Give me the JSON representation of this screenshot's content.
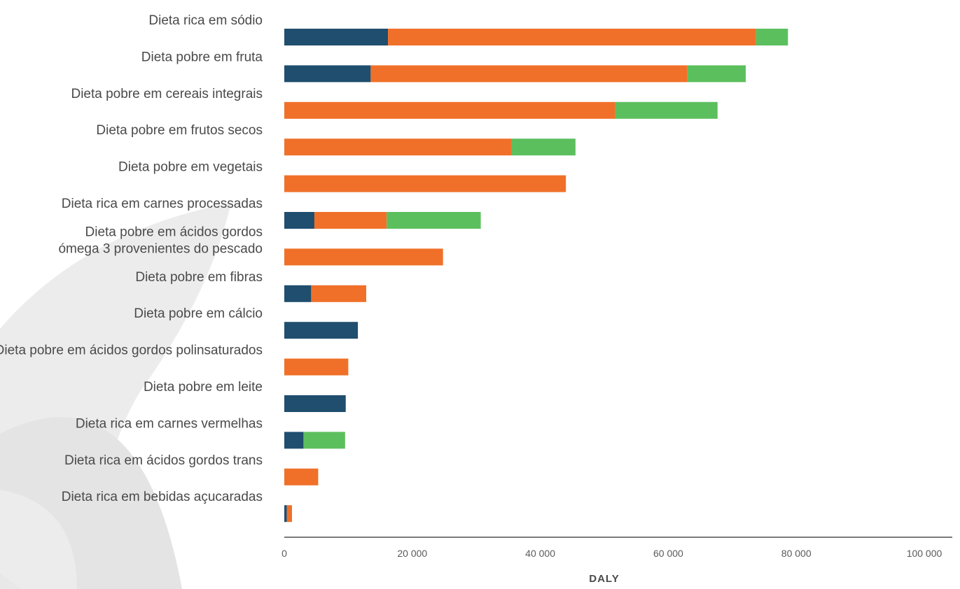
{
  "chart_data": {
    "type": "bar",
    "orientation": "horizontal",
    "stacked": true,
    "xlabel": "DALY",
    "xlim": [
      0,
      100000
    ],
    "xticks": [
      0,
      20000,
      40000,
      60000,
      80000,
      100000
    ],
    "xtick_labels": [
      "0",
      "20 000",
      "40 000",
      "60 000",
      "80 000",
      "100 000"
    ],
    "grid": false,
    "categories": [
      [
        "Dieta rica em sódio"
      ],
      [
        "Dieta pobre em fruta"
      ],
      [
        "Dieta pobre em cereais integrais"
      ],
      [
        "Dieta pobre em frutos secos"
      ],
      [
        "Dieta pobre em vegetais"
      ],
      [
        "Dieta rica em carnes processadas"
      ],
      [
        "Dieta pobre em ácidos gordos",
        "ómega 3 provenientes do pescado"
      ],
      [
        "Dieta pobre em fibras"
      ],
      [
        "Dieta pobre em cálcio"
      ],
      [
        "Dieta pobre em ácidos gordos polinsaturados"
      ],
      [
        "Dieta pobre em leite"
      ],
      [
        "Dieta rica em carnes vermelhas"
      ],
      [
        "Dieta rica em ácidos gordos trans"
      ],
      [
        "Dieta rica em bebidas açucaradas"
      ]
    ],
    "series": [
      {
        "color": "#1f4e6e",
        "values": [
          16200,
          13500,
          0,
          0,
          0,
          4700,
          0,
          4200,
          11500,
          0,
          9600,
          3000,
          0,
          400
        ]
      },
      {
        "color": "#f07029",
        "values": [
          57500,
          49500,
          51700,
          35500,
          44000,
          11300,
          24800,
          8600,
          0,
          10000,
          0,
          0,
          5300,
          800
        ]
      },
      {
        "color": "#5cbf5e",
        "values": [
          5000,
          9100,
          16000,
          10000,
          0,
          14700,
          0,
          0,
          0,
          0,
          0,
          6500,
          0,
          0
        ]
      }
    ]
  }
}
